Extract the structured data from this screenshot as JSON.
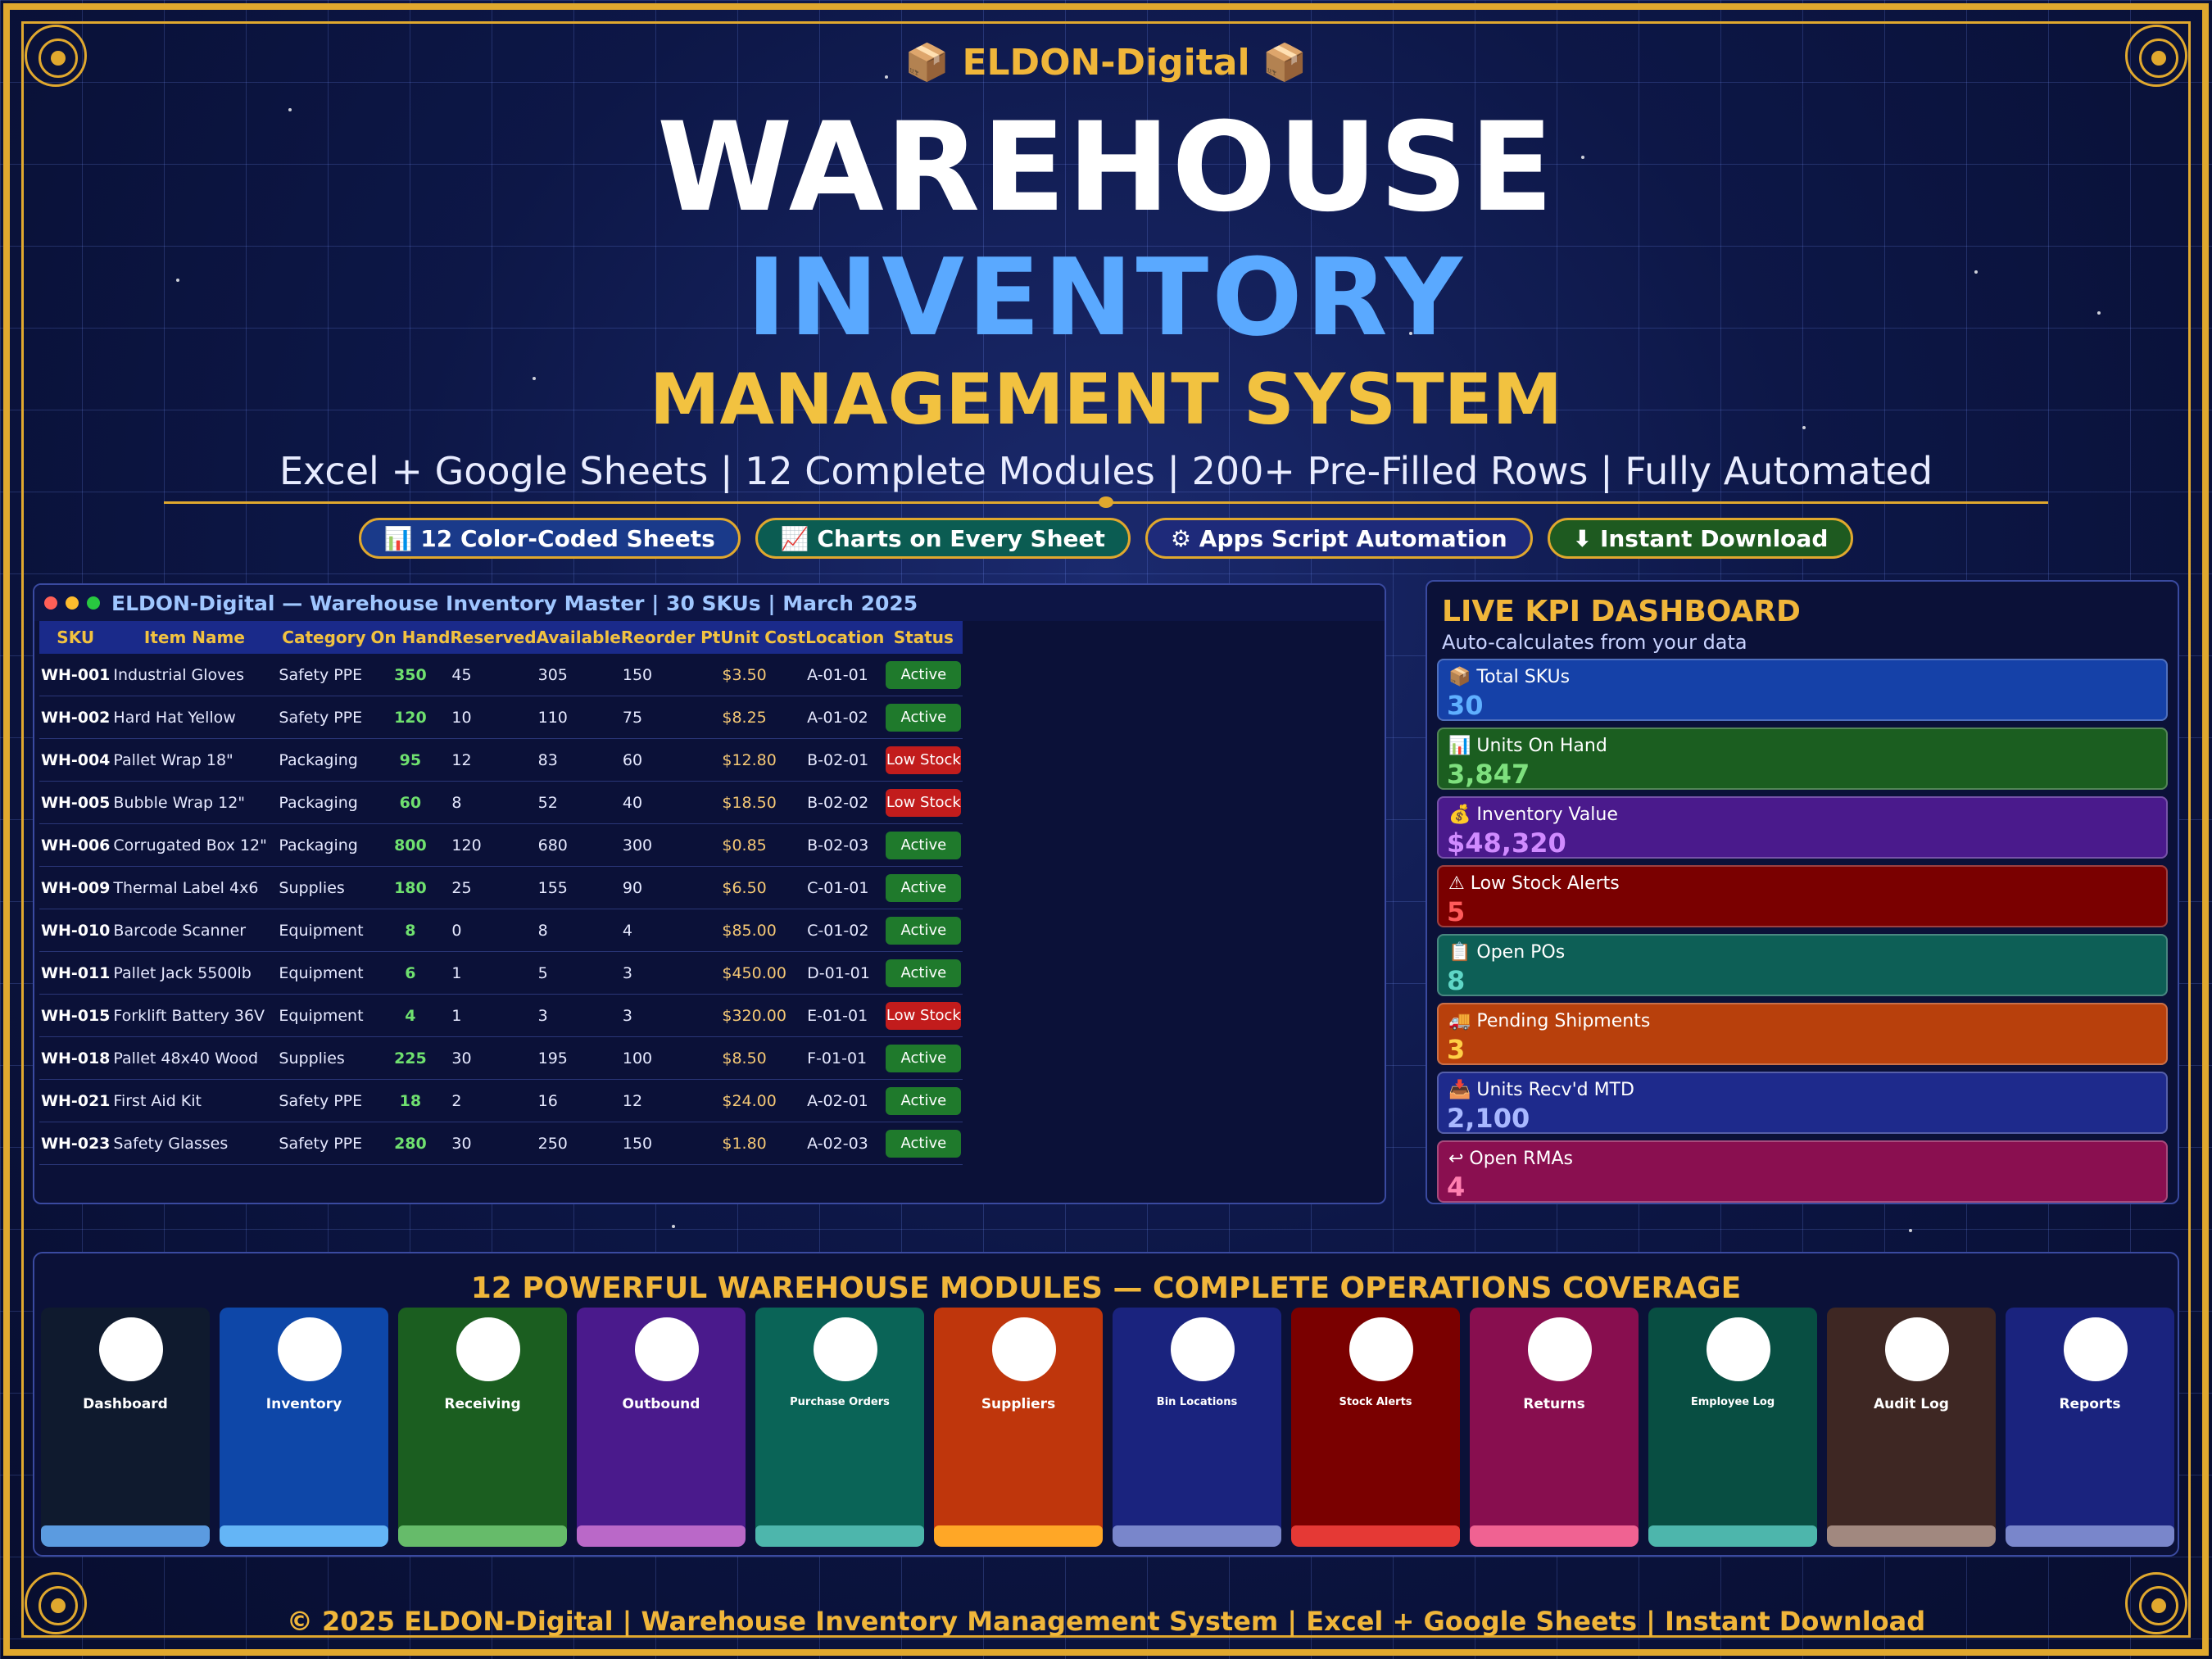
{
  "header": {
    "brand": "📦 ELDON-Digital 📦",
    "title_line1": "WAREHOUSE",
    "title_line2": "INVENTORY",
    "title_line3": "MANAGEMENT SYSTEM",
    "subtitle": "Excel + Google Sheets | 12 Complete Modules | 200+ Pre-Filled Rows | Fully Automated"
  },
  "features": [
    {
      "label": "📊 12 Color-Coded Sheets",
      "color": "#1a3a8a"
    },
    {
      "label": "📈 Charts on Every Sheet",
      "color": "#0b5c52"
    },
    {
      "label": "⚙ Apps Script Automation",
      "color": "#1e2a7a"
    },
    {
      "label": "⬇ Instant Download",
      "color": "#1e5a20"
    }
  ],
  "table": {
    "window_title": "ELDON-Digital — Warehouse Inventory Master | 30 SKUs | March 2025",
    "columns": [
      "SKU",
      "Item Name",
      "Category",
      "On Hand",
      "Reserved",
      "Available",
      "Reorder Pt",
      "Unit Cost",
      "Location",
      "Status"
    ],
    "rows": [
      {
        "sku": "WH-001",
        "name": "Industrial Gloves",
        "category": "Safety PPE",
        "on_hand": "350",
        "reserved": "45",
        "available": "305",
        "reorder": "150",
        "cost": "$3.50",
        "location": "A-01-01",
        "status": "Active"
      },
      {
        "sku": "WH-002",
        "name": "Hard Hat Yellow",
        "category": "Safety PPE",
        "on_hand": "120",
        "reserved": "10",
        "available": "110",
        "reorder": "75",
        "cost": "$8.25",
        "location": "A-01-02",
        "status": "Active"
      },
      {
        "sku": "WH-004",
        "name": "Pallet Wrap 18\"",
        "category": "Packaging",
        "on_hand": "95",
        "reserved": "12",
        "available": "83",
        "reorder": "60",
        "cost": "$12.80",
        "location": "B-02-01",
        "status": "Low Stock"
      },
      {
        "sku": "WH-005",
        "name": "Bubble Wrap 12\"",
        "category": "Packaging",
        "on_hand": "60",
        "reserved": "8",
        "available": "52",
        "reorder": "40",
        "cost": "$18.50",
        "location": "B-02-02",
        "status": "Low Stock"
      },
      {
        "sku": "WH-006",
        "name": "Corrugated Box 12\"",
        "category": "Packaging",
        "on_hand": "800",
        "reserved": "120",
        "available": "680",
        "reorder": "300",
        "cost": "$0.85",
        "location": "B-02-03",
        "status": "Active"
      },
      {
        "sku": "WH-009",
        "name": "Thermal Label 4x6",
        "category": "Supplies",
        "on_hand": "180",
        "reserved": "25",
        "available": "155",
        "reorder": "90",
        "cost": "$6.50",
        "location": "C-01-01",
        "status": "Active"
      },
      {
        "sku": "WH-010",
        "name": "Barcode Scanner",
        "category": "Equipment",
        "on_hand": "8",
        "reserved": "0",
        "available": "8",
        "reorder": "4",
        "cost": "$85.00",
        "location": "C-01-02",
        "status": "Active"
      },
      {
        "sku": "WH-011",
        "name": "Pallet Jack 5500lb",
        "category": "Equipment",
        "on_hand": "6",
        "reserved": "1",
        "available": "5",
        "reorder": "3",
        "cost": "$450.00",
        "location": "D-01-01",
        "status": "Active"
      },
      {
        "sku": "WH-015",
        "name": "Forklift Battery 36V",
        "category": "Equipment",
        "on_hand": "4",
        "reserved": "1",
        "available": "3",
        "reorder": "3",
        "cost": "$320.00",
        "location": "E-01-01",
        "status": "Low Stock"
      },
      {
        "sku": "WH-018",
        "name": "Pallet 48x40 Wood",
        "category": "Supplies",
        "on_hand": "225",
        "reserved": "30",
        "available": "195",
        "reorder": "100",
        "cost": "$8.50",
        "location": "F-01-01",
        "status": "Active"
      },
      {
        "sku": "WH-021",
        "name": "First Aid Kit",
        "category": "Safety PPE",
        "on_hand": "18",
        "reserved": "2",
        "available": "16",
        "reorder": "12",
        "cost": "$24.00",
        "location": "A-02-01",
        "status": "Active"
      },
      {
        "sku": "WH-023",
        "name": "Safety Glasses",
        "category": "Safety PPE",
        "on_hand": "280",
        "reserved": "30",
        "available": "250",
        "reorder": "150",
        "cost": "$1.80",
        "location": "A-02-03",
        "status": "Active"
      }
    ]
  },
  "kpi": {
    "title": "LIVE KPI DASHBOARD",
    "subtitle": "Auto-calculates from your data",
    "cards": [
      {
        "label": "📦 Total SKUs",
        "value": "30",
        "bg": "#1541a8",
        "color": "#5fb0ff"
      },
      {
        "label": "📊 Units On Hand",
        "value": "3,847",
        "bg": "#1b5e20",
        "color": "#7ee07e"
      },
      {
        "label": "💰 Inventory Value",
        "value": "$48,320",
        "bg": "#4a1a8c",
        "color": "#d08bff"
      },
      {
        "label": "⚠ Low Stock Alerts",
        "value": "5",
        "bg": "#7a0000",
        "color": "#ff5a5a"
      },
      {
        "label": "📋 Open POs",
        "value": "8",
        "bg": "#0d5f56",
        "color": "#5fd6c6"
      },
      {
        "label": "🚚 Pending Shipments",
        "value": "3",
        "bg": "#b8400c",
        "color": "#ffcf45"
      },
      {
        "label": "📥 Units Recv'd MTD",
        "value": "2,100",
        "bg": "#1e2a8c",
        "color": "#a9b8ff"
      },
      {
        "label": "↩ Open RMAs",
        "value": "4",
        "bg": "#8a0f50",
        "color": "#ff7fb0"
      }
    ]
  },
  "modules": {
    "title": "12 POWERFUL WAREHOUSE MODULES — COMPLETE OPERATIONS COVERAGE",
    "items": [
      {
        "label": "Dashboard",
        "bg": "#0f1a2e",
        "bar": "#5b9be0",
        "small": false
      },
      {
        "label": "Inventory",
        "bg": "#0e47a8",
        "bar": "#64b5f6",
        "small": false
      },
      {
        "label": "Receiving",
        "bg": "#1b5e20",
        "bar": "#66bb6a",
        "small": false
      },
      {
        "label": "Outbound",
        "bg": "#4a1a8c",
        "bar": "#ba68c8",
        "small": false
      },
      {
        "label": "Purchase Orders",
        "bg": "#0a6457",
        "bar": "#4db6ac",
        "small": true
      },
      {
        "label": "Suppliers",
        "bg": "#bf360c",
        "bar": "#ffa726",
        "small": false
      },
      {
        "label": "Bin Locations",
        "bg": "#1a237e",
        "bar": "#7986cb",
        "small": true
      },
      {
        "label": "Stock Alerts",
        "bg": "#7a0000",
        "bar": "#e53935",
        "small": true
      },
      {
        "label": "Returns",
        "bg": "#880e4f",
        "bar": "#f06292",
        "small": false
      },
      {
        "label": "Employee Log",
        "bg": "#084e42",
        "bar": "#4db6ac",
        "small": true
      },
      {
        "label": "Audit Log",
        "bg": "#3e2723",
        "bar": "#a1887f",
        "small": false
      },
      {
        "label": "Reports",
        "bg": "#1a237e",
        "bar": "#7986cb",
        "small": false
      }
    ]
  },
  "footer": "© 2025 ELDON-Digital | Warehouse Inventory Management System | Excel + Google Sheets | Instant Download"
}
